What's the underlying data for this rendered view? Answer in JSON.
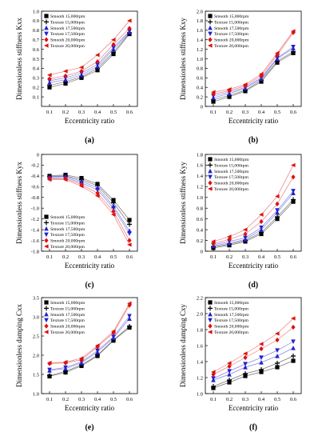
{
  "figure": {
    "panels": [
      {
        "label": "(a)"
      },
      {
        "label": "(b)"
      },
      {
        "label": "(c)"
      },
      {
        "label": "(d)"
      },
      {
        "label": "(e)"
      },
      {
        "label": "(f)"
      }
    ]
  },
  "chart_data": [
    {
      "type": "line",
      "label": "(a)",
      "xlabel": "Eccentricity ratio",
      "ylabel": "Dimensionless stiffness Kxx",
      "x": [
        0.1,
        0.2,
        0.3,
        0.4,
        0.5,
        0.6
      ],
      "xlim": [
        0.05,
        0.65
      ],
      "ylim": [
        0,
        1.0
      ],
      "yticks": [
        0.1,
        0.2,
        0.3,
        0.4,
        0.5,
        0.6,
        0.7,
        0.8,
        0.9,
        1.0
      ],
      "legend_position": "top-left",
      "series": [
        {
          "name": "Smooth 15,000rpm",
          "color": "#000000",
          "marker": "square",
          "values": [
            0.2,
            0.24,
            0.3,
            0.38,
            0.55,
            0.76
          ]
        },
        {
          "name": "Texture 15,000rpm",
          "color": "#000000",
          "marker": "plus",
          "values": [
            0.22,
            0.26,
            0.31,
            0.4,
            0.57,
            0.77
          ]
        },
        {
          "name": "Smooth 17,500rpm",
          "color": "#2222cc",
          "marker": "triangle-up",
          "values": [
            0.25,
            0.28,
            0.33,
            0.42,
            0.6,
            0.78
          ]
        },
        {
          "name": "Texture 17,500rpm",
          "color": "#2222cc",
          "marker": "triangle-down",
          "values": [
            0.27,
            0.3,
            0.35,
            0.44,
            0.62,
            0.79
          ]
        },
        {
          "name": "Smooth 20,000rpm",
          "color": "#dd1111",
          "marker": "diamond",
          "values": [
            0.29,
            0.32,
            0.37,
            0.47,
            0.65,
            0.82
          ]
        },
        {
          "name": "Texture 20,000rpm",
          "color": "#dd1111",
          "marker": "triangle-left",
          "values": [
            0.33,
            0.37,
            0.41,
            0.54,
            0.7,
            0.9
          ]
        }
      ]
    },
    {
      "type": "line",
      "label": "(b)",
      "xlabel": "Eccentricity ratio",
      "ylabel": "Dimensionless stiffness Kxy",
      "x": [
        0.1,
        0.2,
        0.3,
        0.4,
        0.5,
        0.6
      ],
      "xlim": [
        0.05,
        0.65
      ],
      "ylim": [
        0,
        2.0
      ],
      "yticks": [
        0,
        0.2,
        0.4,
        0.6,
        0.8,
        1.0,
        1.2,
        1.4,
        1.6,
        1.8,
        2.0
      ],
      "legend_position": "top-left",
      "series": [
        {
          "name": "Smooth 15,000rpm",
          "color": "#000000",
          "marker": "square",
          "values": [
            0.1,
            0.2,
            0.32,
            0.52,
            0.92,
            1.12
          ]
        },
        {
          "name": "Texture 15,000rpm",
          "color": "#000000",
          "marker": "plus",
          "values": [
            0.14,
            0.23,
            0.34,
            0.55,
            0.95,
            1.15
          ]
        },
        {
          "name": "Smooth 17,500rpm",
          "color": "#2222cc",
          "marker": "triangle-up",
          "values": [
            0.18,
            0.27,
            0.38,
            0.58,
            1.0,
            1.22
          ]
        },
        {
          "name": "Texture 17,500rpm",
          "color": "#2222cc",
          "marker": "triangle-down",
          "values": [
            0.22,
            0.3,
            0.4,
            0.6,
            1.02,
            1.25
          ]
        },
        {
          "name": "Smooth 20,000rpm",
          "color": "#dd1111",
          "marker": "diamond",
          "values": [
            0.26,
            0.33,
            0.43,
            0.64,
            1.08,
            1.55
          ]
        },
        {
          "name": "Texture 20,000rpm",
          "color": "#dd1111",
          "marker": "triangle-left",
          "values": [
            0.3,
            0.36,
            0.46,
            0.68,
            1.12,
            1.58
          ]
        }
      ]
    },
    {
      "type": "line",
      "label": "(c)",
      "xlabel": "Eccentricity ratio",
      "ylabel": "Dimensionless stiffness Kyx",
      "x": [
        0.1,
        0.2,
        0.3,
        0.4,
        0.5,
        0.6
      ],
      "xlim": [
        0.05,
        0.65
      ],
      "ylim": [
        -1.8,
        0
      ],
      "yticks": [
        0,
        -0.2,
        -0.4,
        -0.6,
        -0.8,
        -1.0,
        -1.2,
        -1.4,
        -1.6,
        -1.8
      ],
      "legend_position": "bottom-left",
      "series": [
        {
          "name": "Smooth 15,000rpm",
          "color": "#000000",
          "marker": "square",
          "values": [
            -0.4,
            -0.38,
            -0.44,
            -0.55,
            -0.85,
            -1.22
          ]
        },
        {
          "name": "Texture 15,000rpm",
          "color": "#000000",
          "marker": "plus",
          "values": [
            -0.41,
            -0.4,
            -0.47,
            -0.58,
            -0.9,
            -1.3
          ]
        },
        {
          "name": "Smooth 17,500rpm",
          "color": "#2222cc",
          "marker": "triangle-up",
          "values": [
            -0.42,
            -0.41,
            -0.5,
            -0.62,
            -0.96,
            -1.42
          ]
        },
        {
          "name": "Texture 17,500rpm",
          "color": "#2222cc",
          "marker": "triangle-down",
          "values": [
            -0.44,
            -0.43,
            -0.53,
            -0.66,
            -1.0,
            -1.47
          ]
        },
        {
          "name": "Smooth 20,000rpm",
          "color": "#dd1111",
          "marker": "diamond",
          "values": [
            -0.45,
            -0.45,
            -0.56,
            -0.72,
            -1.06,
            -1.6
          ]
        },
        {
          "name": "Texture 20,000rpm",
          "color": "#dd1111",
          "marker": "triangle-left",
          "values": [
            -0.47,
            -0.47,
            -0.59,
            -0.77,
            -1.12,
            -1.68
          ]
        }
      ]
    },
    {
      "type": "line",
      "label": "(d)",
      "xlabel": "Eccentricity ratio",
      "ylabel": "Dimensionless stiffness Kyy",
      "x": [
        0.1,
        0.2,
        0.3,
        0.4,
        0.5,
        0.6
      ],
      "xlim": [
        0.05,
        0.65
      ],
      "ylim": [
        0,
        1.8
      ],
      "yticks": [
        0,
        0.2,
        0.4,
        0.6,
        0.8,
        1.0,
        1.2,
        1.4,
        1.6,
        1.8
      ],
      "legend_position": "top-left",
      "series": [
        {
          "name": "Smooth 15,000rpm",
          "color": "#000000",
          "marker": "square",
          "values": [
            0.06,
            0.11,
            0.18,
            0.32,
            0.6,
            0.92
          ]
        },
        {
          "name": "Texture 15,000rpm",
          "color": "#000000",
          "marker": "plus",
          "values": [
            0.08,
            0.13,
            0.2,
            0.35,
            0.64,
            0.96
          ]
        },
        {
          "name": "Smooth 17,500rpm",
          "color": "#2222cc",
          "marker": "triangle-up",
          "values": [
            0.1,
            0.15,
            0.22,
            0.4,
            0.72,
            1.08
          ]
        },
        {
          "name": "Texture 17,500rpm",
          "color": "#2222cc",
          "marker": "triangle-down",
          "values": [
            0.12,
            0.18,
            0.25,
            0.44,
            0.76,
            1.12
          ]
        },
        {
          "name": "Smooth 20,000rpm",
          "color": "#dd1111",
          "marker": "diamond",
          "values": [
            0.14,
            0.22,
            0.32,
            0.55,
            0.88,
            1.38
          ]
        },
        {
          "name": "Texture 20,000rpm",
          "color": "#dd1111",
          "marker": "triangle-left",
          "values": [
            0.18,
            0.27,
            0.4,
            0.68,
            1.02,
            1.6
          ]
        }
      ]
    },
    {
      "type": "line",
      "label": "(e)",
      "xlabel": "Eccentricity ratio",
      "ylabel": "Dimensionless damping Cxx",
      "x": [
        0.1,
        0.2,
        0.3,
        0.4,
        0.5,
        0.6
      ],
      "xlim": [
        0.05,
        0.65
      ],
      "ylim": [
        1.0,
        3.5
      ],
      "yticks": [
        1.0,
        1.5,
        2.0,
        2.5,
        3.0,
        3.5
      ],
      "legend_position": "top-left",
      "series": [
        {
          "name": "Smooth 15,000rpm",
          "color": "#000000",
          "marker": "square",
          "values": [
            1.45,
            1.55,
            1.72,
            1.98,
            2.38,
            2.72
          ]
        },
        {
          "name": "Texture 15,000rpm",
          "color": "#000000",
          "marker": "plus",
          "values": [
            1.47,
            1.58,
            1.75,
            2.0,
            2.4,
            2.75
          ]
        },
        {
          "name": "Smooth 17,500rpm",
          "color": "#2222cc",
          "marker": "triangle-up",
          "values": [
            1.6,
            1.65,
            1.8,
            2.08,
            2.45,
            2.95
          ]
        },
        {
          "name": "Texture 17,500rpm",
          "color": "#2222cc",
          "marker": "triangle-down",
          "values": [
            1.62,
            1.68,
            1.83,
            2.12,
            2.48,
            3.02
          ]
        },
        {
          "name": "Smooth 20,000rpm",
          "color": "#dd1111",
          "marker": "diamond",
          "values": [
            1.78,
            1.8,
            1.88,
            2.22,
            2.58,
            3.3
          ]
        },
        {
          "name": "Texture 20,000rpm",
          "color": "#dd1111",
          "marker": "triangle-left",
          "values": [
            1.8,
            1.82,
            1.92,
            2.25,
            2.62,
            3.35
          ]
        }
      ]
    },
    {
      "type": "line",
      "label": "(f)",
      "xlabel": "Eccentricity ratio",
      "ylabel": "Dimensionless damping Cxy",
      "x": [
        0.1,
        0.2,
        0.3,
        0.4,
        0.5,
        0.6
      ],
      "xlim": [
        0.05,
        0.65
      ],
      "ylim": [
        1.0,
        2.2
      ],
      "yticks": [
        1.0,
        1.2,
        1.4,
        1.6,
        1.8,
        2.0,
        2.2
      ],
      "legend_position": "top-left",
      "series": [
        {
          "name": "Smooth 15,000rpm",
          "color": "#000000",
          "marker": "square",
          "values": [
            1.07,
            1.14,
            1.22,
            1.27,
            1.33,
            1.41
          ]
        },
        {
          "name": "Texture 15,000rpm",
          "color": "#000000",
          "marker": "plus",
          "values": [
            1.09,
            1.17,
            1.25,
            1.3,
            1.38,
            1.47
          ]
        },
        {
          "name": "Smooth 17,500rpm",
          "color": "#2222cc",
          "marker": "triangle-up",
          "values": [
            1.17,
            1.24,
            1.33,
            1.39,
            1.47,
            1.57
          ]
        },
        {
          "name": "Texture 17,500rpm",
          "color": "#2222cc",
          "marker": "triangle-down",
          "values": [
            1.19,
            1.28,
            1.37,
            1.45,
            1.54,
            1.65
          ]
        },
        {
          "name": "Smooth 20,000rpm",
          "color": "#dd1111",
          "marker": "diamond",
          "values": [
            1.24,
            1.34,
            1.45,
            1.56,
            1.67,
            1.83
          ]
        },
        {
          "name": "Texture 20,000rpm",
          "color": "#dd1111",
          "marker": "triangle-left",
          "values": [
            1.27,
            1.38,
            1.5,
            1.62,
            1.75,
            1.94
          ]
        }
      ]
    }
  ]
}
